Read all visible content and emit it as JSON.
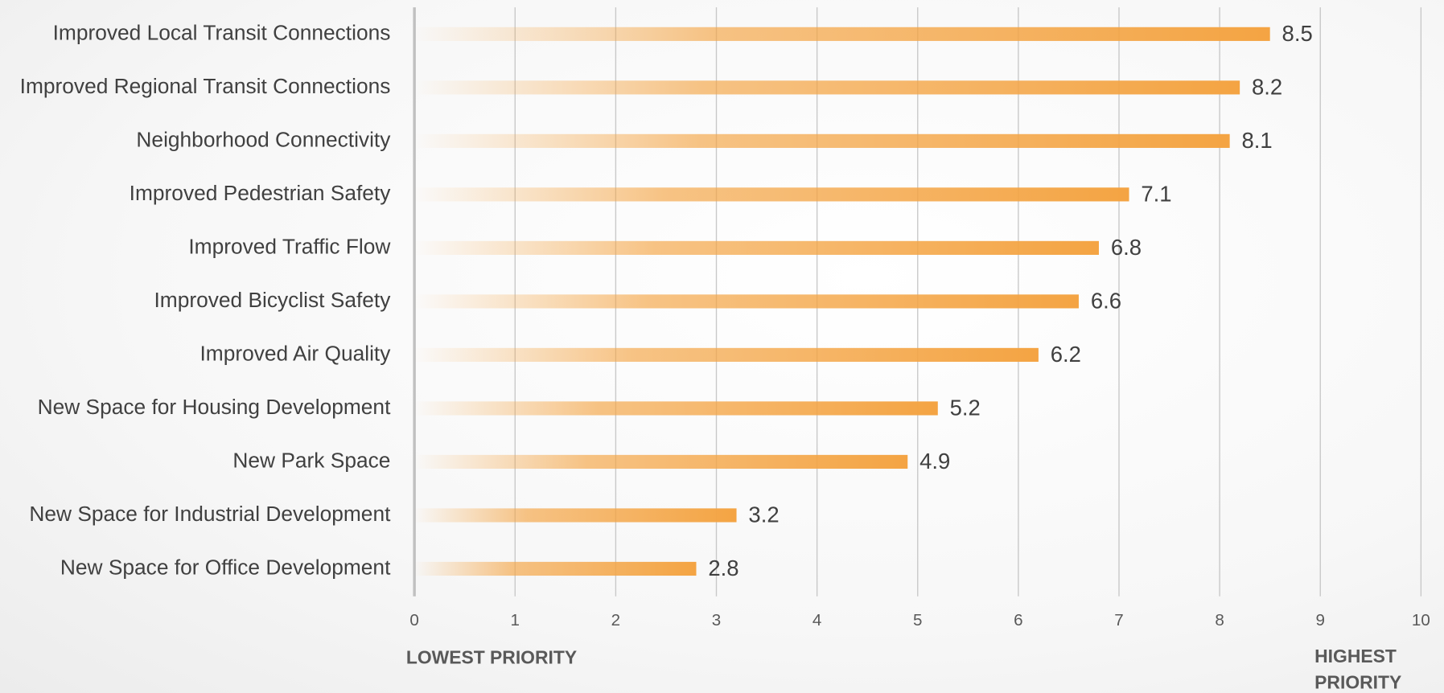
{
  "chart_data": {
    "type": "bar",
    "orientation": "horizontal",
    "categories": [
      "Improved Local Transit Connections",
      "Improved Regional Transit Connections",
      "Neighborhood Connectivity",
      "Improved Pedestrian Safety",
      "Improved Traffic Flow",
      "Improved Bicyclist Safety",
      "Improved Air Quality",
      "New Space for Housing Development",
      "New Park Space",
      "New Space for Industrial Development",
      "New Space for Office Development"
    ],
    "values": [
      8.5,
      8.2,
      8.1,
      7.1,
      6.8,
      6.6,
      6.2,
      5.2,
      4.9,
      3.2,
      2.8
    ],
    "color": "#f4a443",
    "xlim": [
      0,
      10
    ],
    "xticks": [
      0,
      1,
      2,
      3,
      4,
      5,
      6,
      7,
      8,
      9,
      10
    ],
    "grid": true,
    "annotations": [
      "LOWEST PRIORITY",
      "HIGHEST PRIORITY"
    ]
  }
}
